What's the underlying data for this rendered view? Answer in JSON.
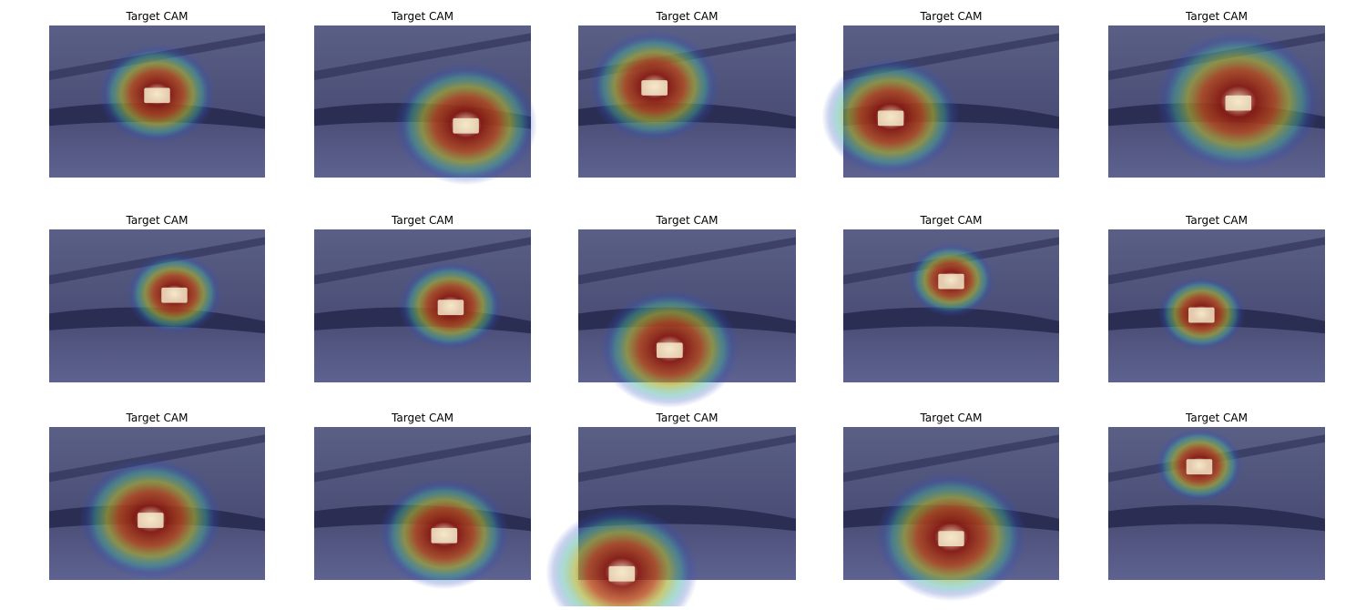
{
  "panels": [
    {
      "title": "Target CAM"
    },
    {
      "title": "Target CAM"
    },
    {
      "title": "Target CAM"
    },
    {
      "title": "Target CAM"
    },
    {
      "title": "Target CAM"
    },
    {
      "title": "Target CAM"
    },
    {
      "title": "Target CAM"
    },
    {
      "title": "Target CAM"
    },
    {
      "title": "Target CAM"
    },
    {
      "title": "Target CAM"
    },
    {
      "title": "Target CAM"
    },
    {
      "title": "Target CAM"
    },
    {
      "title": "Target CAM"
    },
    {
      "title": "Target CAM"
    },
    {
      "title": "Target CAM"
    }
  ]
}
